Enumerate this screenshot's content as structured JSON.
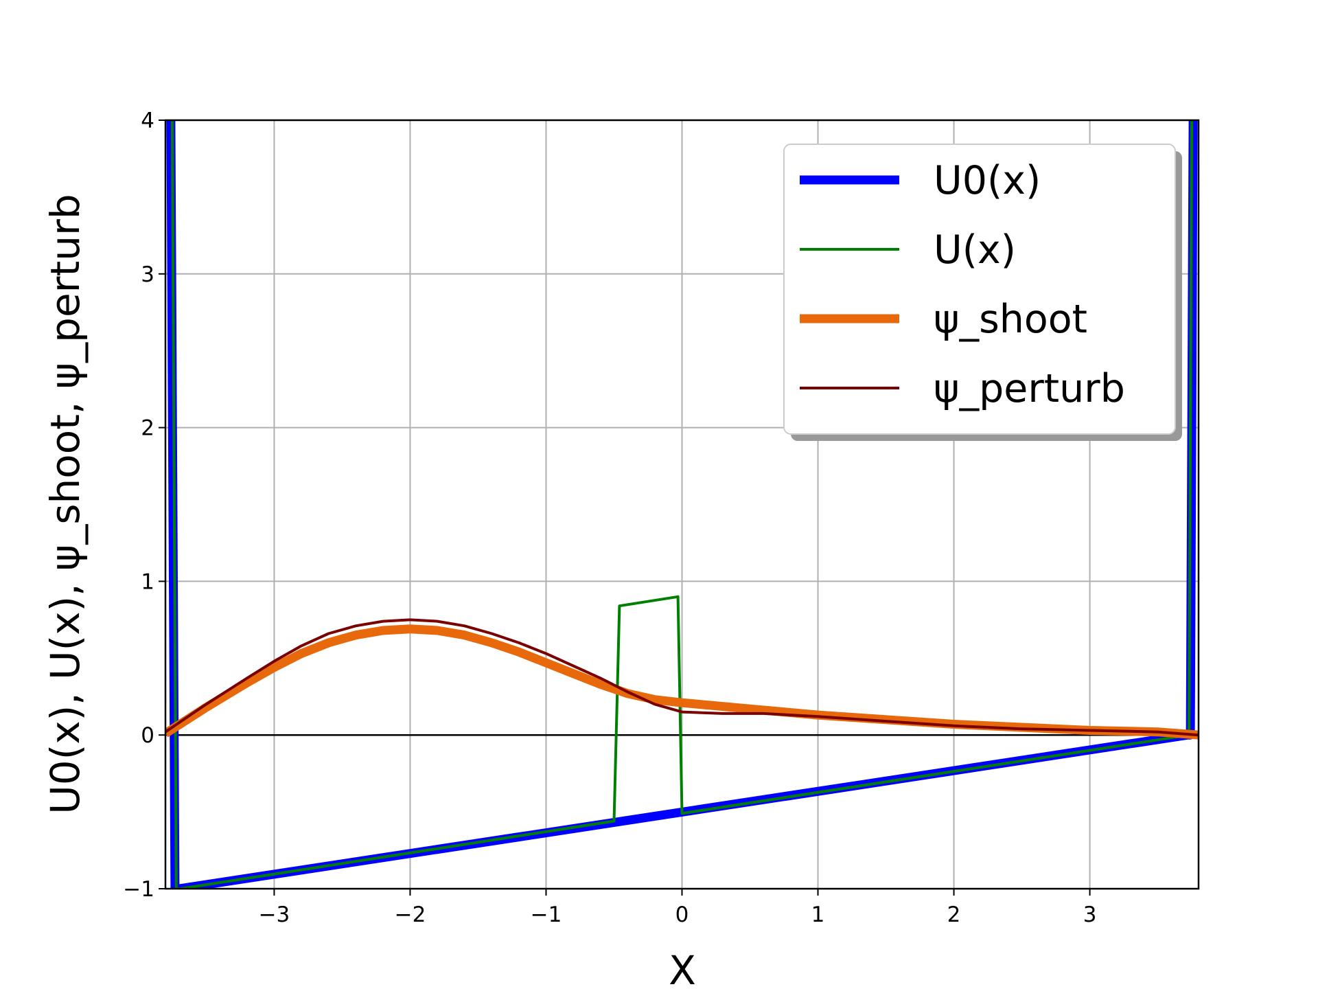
{
  "chart_data": {
    "type": "line",
    "title": "",
    "xlabel": "X",
    "ylabel": "U0(x), U(x), ψ_shoot, ψ_perturb",
    "xlim": [
      -3.8,
      3.8
    ],
    "ylim": [
      -1,
      4
    ],
    "xticks": [
      -3,
      -2,
      -1,
      0,
      1,
      2,
      3
    ],
    "xtick_labels": [
      "−3",
      "−2",
      "−1",
      "0",
      "1",
      "2",
      "3"
    ],
    "yticks": [
      -1,
      0,
      1,
      2,
      3,
      4
    ],
    "ytick_labels": [
      "−1",
      "0",
      "1",
      "2",
      "3",
      "4"
    ],
    "grid": true,
    "legend_position": "top-right",
    "zero_line": true,
    "series": [
      {
        "name": "U0(x)",
        "color": "#0000ff",
        "width": "thick",
        "x": [
          -3.76,
          -3.73,
          -3.7,
          3.72,
          3.74,
          3.76
        ],
        "y": [
          4.0,
          -1.0,
          -1.0,
          0.0,
          0.0,
          4.0
        ]
      },
      {
        "name": "U(x)",
        "color": "#008000",
        "width": "thin",
        "x": [
          -3.75,
          -3.72,
          -3.69,
          -0.5,
          -0.46,
          -0.03,
          0.0,
          3.73,
          3.75
        ],
        "y": [
          4.0,
          -1.0,
          -1.0,
          -0.56,
          0.84,
          0.9,
          -0.51,
          0.0,
          4.0
        ]
      },
      {
        "name": "ψ_shoot",
        "color": "#e8690b",
        "width": "thick",
        "x": [
          -3.8,
          -3.5,
          -3.2,
          -3.0,
          -2.8,
          -2.6,
          -2.4,
          -2.2,
          -2.0,
          -1.8,
          -1.6,
          -1.4,
          -1.2,
          -1.0,
          -0.8,
          -0.6,
          -0.4,
          -0.2,
          0.0,
          0.5,
          1.0,
          1.5,
          2.0,
          2.5,
          3.0,
          3.5,
          3.8
        ],
        "y": [
          0.01,
          0.18,
          0.34,
          0.44,
          0.53,
          0.6,
          0.65,
          0.68,
          0.69,
          0.68,
          0.65,
          0.6,
          0.54,
          0.47,
          0.4,
          0.33,
          0.27,
          0.23,
          0.21,
          0.17,
          0.13,
          0.1,
          0.07,
          0.05,
          0.03,
          0.02,
          0.0
        ]
      },
      {
        "name": "ψ_perturb",
        "color": "#7a0000",
        "width": "thin",
        "x": [
          -3.8,
          -3.5,
          -3.2,
          -3.0,
          -2.8,
          -2.6,
          -2.4,
          -2.2,
          -2.0,
          -1.8,
          -1.6,
          -1.4,
          -1.2,
          -1.0,
          -0.8,
          -0.6,
          -0.4,
          -0.2,
          0.0,
          0.3,
          0.6,
          1.0,
          1.5,
          2.0,
          2.5,
          3.0,
          3.5,
          3.8
        ],
        "y": [
          0.02,
          0.2,
          0.37,
          0.48,
          0.58,
          0.66,
          0.71,
          0.74,
          0.75,
          0.74,
          0.71,
          0.66,
          0.6,
          0.53,
          0.45,
          0.37,
          0.28,
          0.2,
          0.15,
          0.14,
          0.14,
          0.12,
          0.09,
          0.06,
          0.04,
          0.03,
          0.02,
          0.0
        ]
      }
    ]
  }
}
